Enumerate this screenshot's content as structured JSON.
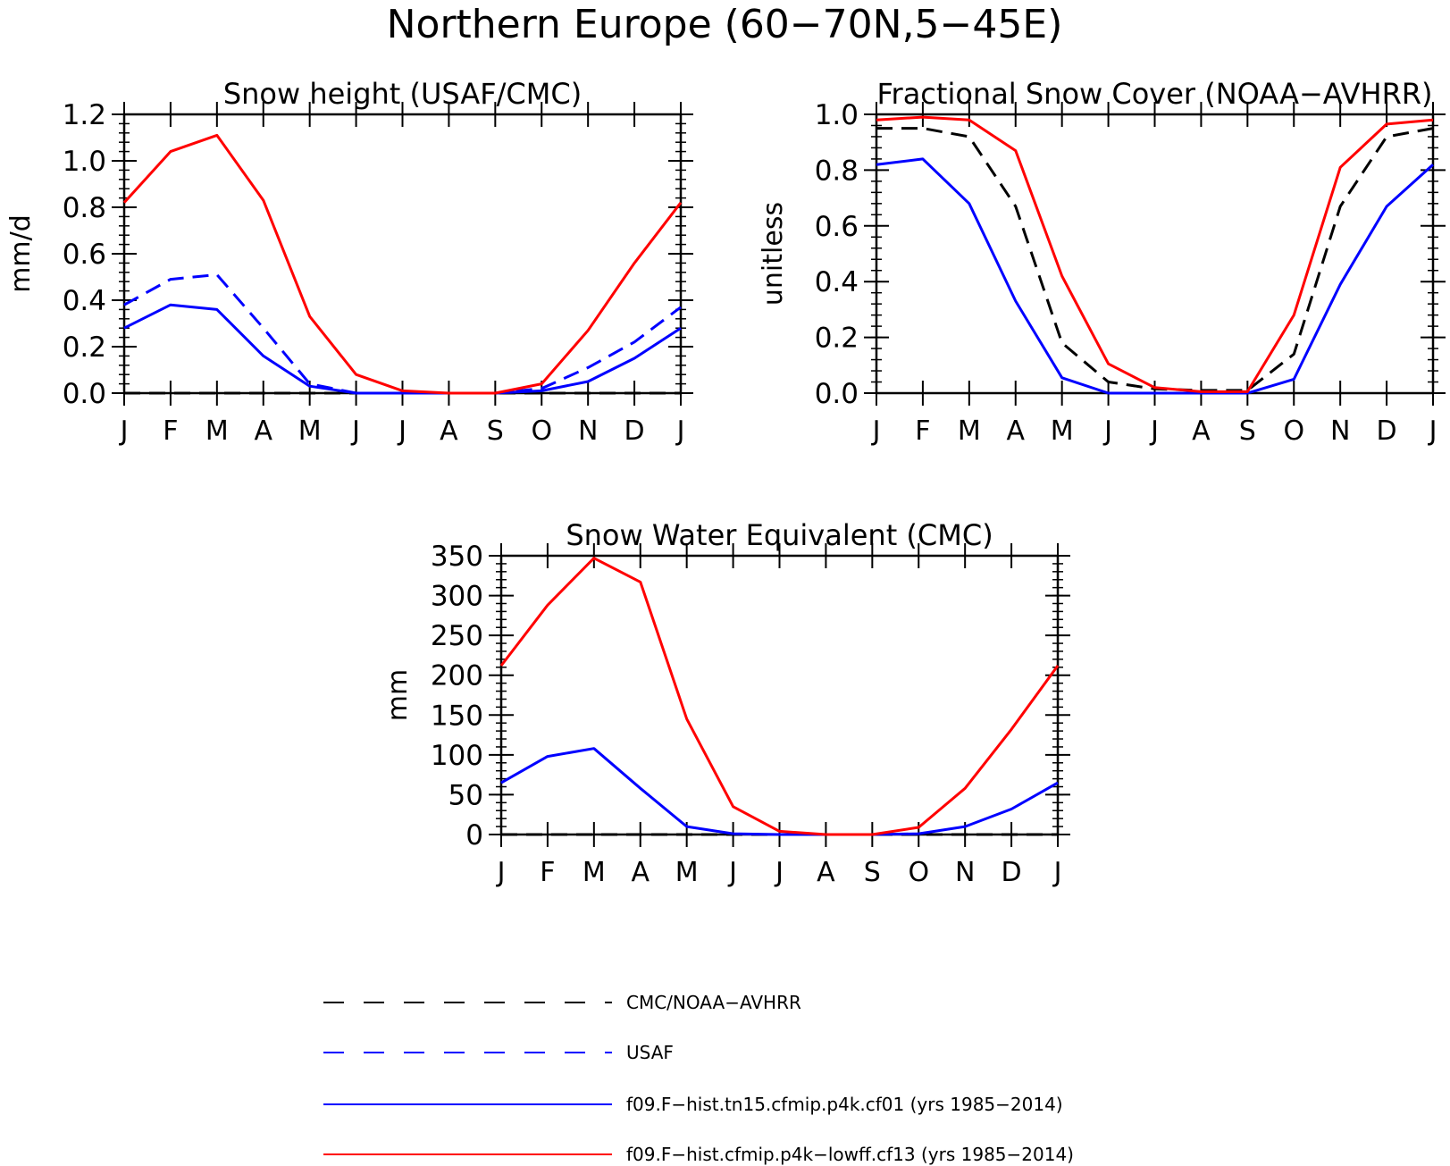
{
  "figure": {
    "title": "Northern Europe (60−70N,5−45E)"
  },
  "months": [
    "J",
    "F",
    "M",
    "A",
    "M",
    "J",
    "J",
    "A",
    "S",
    "O",
    "N",
    "D",
    "J"
  ],
  "colors": {
    "obs": "#000000",
    "usaf": "#0000ff",
    "cf01": "#0000ff",
    "cf13": "#ff0000"
  },
  "legend": [
    {
      "label": "CMC/NOAA−AVHRR",
      "color": "#000000",
      "dashed": true
    },
    {
      "label": "USAF",
      "color": "#0000ff",
      "dashed": true
    },
    {
      "label": "f09.F−hist.tn15.cfmip.p4k.cf01 (yrs 1985−2014)",
      "color": "#0000ff",
      "dashed": false
    },
    {
      "label": "f09.F−hist.cfmip.p4k−lowff.cf13 (yrs 1985−2014)",
      "color": "#ff0000",
      "dashed": false
    }
  ],
  "chart_data": [
    {
      "type": "line",
      "title": "Snow height (USAF/CMC)",
      "ylabel": "mm/d",
      "ylim": [
        0,
        1.2
      ],
      "yticks": [
        "0.0",
        "0.2",
        "0.4",
        "0.6",
        "0.8",
        "1.0",
        "1.2"
      ],
      "ytick_values": [
        0,
        0.2,
        0.4,
        0.6,
        0.8,
        1.0,
        1.2
      ],
      "x": [
        "J",
        "F",
        "M",
        "A",
        "M",
        "J",
        "J",
        "A",
        "S",
        "O",
        "N",
        "D",
        "J"
      ],
      "series": [
        {
          "name": "CMC/NOAA−AVHRR",
          "color": "#000000",
          "dashed": true,
          "values": [
            0,
            0,
            0,
            0,
            0,
            0,
            0,
            0,
            0,
            0,
            0,
            0,
            0
          ]
        },
        {
          "name": "USAF",
          "color": "#0000ff",
          "dashed": true,
          "values": [
            0.38,
            0.49,
            0.51,
            0.28,
            0.04,
            0.0,
            0.0,
            0.0,
            0.0,
            0.02,
            0.11,
            0.22,
            0.37
          ]
        },
        {
          "name": "f09.F−hist.tn15.cfmip.p4k.cf01 (yrs 1985−2014)",
          "color": "#0000ff",
          "dashed": false,
          "values": [
            0.28,
            0.38,
            0.36,
            0.16,
            0.03,
            0.0,
            0.0,
            0.0,
            0.0,
            0.01,
            0.05,
            0.15,
            0.28
          ]
        },
        {
          "name": "f09.F−hist.cfmip.p4k−lowff.cf13 (yrs 1985−2014)",
          "color": "#ff0000",
          "dashed": false,
          "values": [
            0.82,
            1.04,
            1.11,
            0.83,
            0.33,
            0.08,
            0.01,
            0.0,
            0.0,
            0.04,
            0.27,
            0.56,
            0.82
          ]
        }
      ]
    },
    {
      "type": "line",
      "title": "Fractional Snow Cover (NOAA−AVHRR)",
      "ylabel": "unitless",
      "ylim": [
        0,
        1.0
      ],
      "yticks": [
        "0.0",
        "0.2",
        "0.4",
        "0.6",
        "0.8",
        "1.0"
      ],
      "ytick_values": [
        0,
        0.2,
        0.4,
        0.6,
        0.8,
        1.0
      ],
      "x": [
        "J",
        "F",
        "M",
        "A",
        "M",
        "J",
        "J",
        "A",
        "S",
        "O",
        "N",
        "D",
        "J"
      ],
      "series": [
        {
          "name": "CMC/NOAA−AVHRR",
          "color": "#000000",
          "dashed": true,
          "values": [
            0.95,
            0.95,
            0.92,
            0.67,
            0.18,
            0.04,
            0.015,
            0.01,
            0.01,
            0.14,
            0.67,
            0.92,
            0.95
          ]
        },
        {
          "name": "f09.F−hist.tn15.cfmip.p4k.cf01 (yrs 1985−2014)",
          "color": "#0000ff",
          "dashed": false,
          "values": [
            0.82,
            0.84,
            0.68,
            0.33,
            0.055,
            0.0,
            0.0,
            0.0,
            0.0,
            0.05,
            0.39,
            0.67,
            0.82
          ]
        },
        {
          "name": "f09.F−hist.cfmip.p4k−lowff.cf13 (yrs 1985−2014)",
          "color": "#ff0000",
          "dashed": false,
          "values": [
            0.98,
            0.99,
            0.98,
            0.87,
            0.42,
            0.105,
            0.02,
            0.005,
            0.005,
            0.28,
            0.81,
            0.965,
            0.98
          ]
        }
      ]
    },
    {
      "type": "line",
      "title": "Snow Water Equivalent (CMC)",
      "ylabel": "mm",
      "ylim": [
        0,
        350
      ],
      "yticks": [
        "0",
        "50",
        "100",
        "150",
        "200",
        "250",
        "300",
        "350"
      ],
      "ytick_values": [
        0,
        50,
        100,
        150,
        200,
        250,
        300,
        350
      ],
      "x": [
        "J",
        "F",
        "M",
        "A",
        "M",
        "J",
        "J",
        "A",
        "S",
        "O",
        "N",
        "D",
        "J"
      ],
      "series": [
        {
          "name": "CMC/NOAA−AVHRR",
          "color": "#000000",
          "dashed": true,
          "values": [
            0,
            0,
            0,
            0,
            0,
            0,
            0,
            0,
            0,
            0,
            0,
            0,
            0
          ]
        },
        {
          "name": "f09.F−hist.tn15.cfmip.p4k.cf01 (yrs 1985−2014)",
          "color": "#0000ff",
          "dashed": false,
          "values": [
            65,
            98,
            108,
            58,
            10,
            1,
            0,
            0,
            0,
            1,
            10,
            32,
            65
          ]
        },
        {
          "name": "f09.F−hist.cfmip.p4k−lowff.cf13 (yrs 1985−2014)",
          "color": "#ff0000",
          "dashed": false,
          "values": [
            212,
            288,
            347,
            317,
            145,
            35,
            4,
            0,
            0,
            9,
            58,
            132,
            212
          ]
        }
      ]
    }
  ]
}
